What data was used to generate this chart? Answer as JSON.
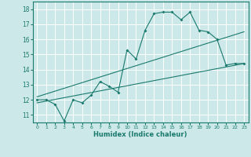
{
  "title": "",
  "xlabel": "Humidex (Indice chaleur)",
  "ylabel": "",
  "bg_color": "#cce8e8",
  "line_color": "#1a7a6e",
  "grid_color": "#ffffff",
  "xlim": [
    -0.5,
    23.5
  ],
  "ylim": [
    10.5,
    18.5
  ],
  "yticks": [
    11,
    12,
    13,
    14,
    15,
    16,
    17,
    18
  ],
  "xticks": [
    0,
    1,
    2,
    3,
    4,
    5,
    6,
    7,
    8,
    9,
    10,
    11,
    12,
    13,
    14,
    15,
    16,
    17,
    18,
    19,
    20,
    21,
    22,
    23
  ],
  "line1_x": [
    0,
    1,
    2,
    3,
    4,
    5,
    6,
    7,
    8,
    9,
    10,
    11,
    12,
    13,
    14,
    15,
    16,
    17,
    18,
    19,
    20,
    21,
    22,
    23
  ],
  "line1_y": [
    12.0,
    12.0,
    11.7,
    10.6,
    12.0,
    11.8,
    12.3,
    13.2,
    12.9,
    12.5,
    15.3,
    14.7,
    16.6,
    17.7,
    17.8,
    17.8,
    17.3,
    17.8,
    16.6,
    16.5,
    16.0,
    14.3,
    14.4,
    14.4
  ],
  "line2_x": [
    0,
    23
  ],
  "line2_y": [
    11.8,
    14.4
  ],
  "line3_x": [
    0,
    23
  ],
  "line3_y": [
    12.2,
    16.5
  ]
}
